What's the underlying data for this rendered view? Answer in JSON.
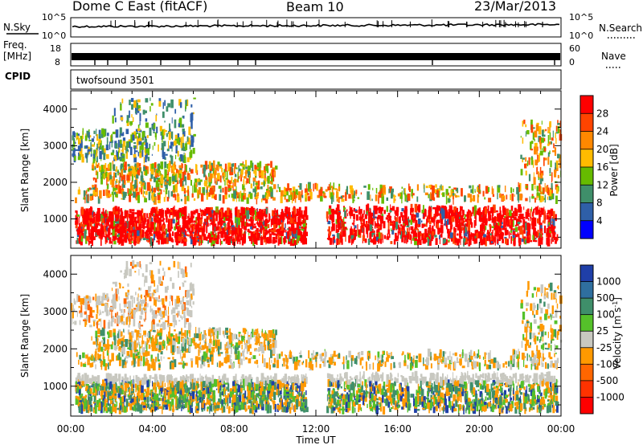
{
  "header": {
    "station": "Dome C East (fitACF)",
    "beam": "Beam 10",
    "date": "23/Mar/2013"
  },
  "strips": {
    "nsky_label": "N.Sky",
    "nsky_ticks": [
      "10^5",
      "10^0"
    ],
    "nsearch_label": "N.Search",
    "nsearch_ticks": [
      "10^5",
      "10^0"
    ],
    "freq_label_line1": "Freq.",
    "freq_label_line2": "[MHz]",
    "freq_ticks": [
      "18",
      "8"
    ],
    "nave_label": "Nave",
    "nave_ticks": [
      "60",
      "0"
    ],
    "cpid_label": "CPID",
    "cpid_value": "twofsound 3501"
  },
  "chart_data": [
    {
      "type": "heatmap",
      "panel": "power",
      "ylabel": "Slant Range [km]",
      "xlabel": "",
      "y_ticks": [
        1000,
        2000,
        3000,
        4000
      ],
      "ylim": [
        200,
        4500
      ],
      "x_ticks": [
        "00:00",
        "04:00",
        "08:00",
        "12:00",
        "16:00",
        "20:00",
        "00:00"
      ],
      "xlim_hours": [
        0,
        24
      ],
      "colorbar": {
        "label": "Power [dB]",
        "ticks": [
          "28",
          "24",
          "20",
          "16",
          "12",
          "8",
          "4"
        ],
        "colors": [
          "#ff0000",
          "#ff4400",
          "#ff8800",
          "#ffbb00",
          "#66bb00",
          "#3f8f6a",
          "#2f5fa8",
          "#0000ff"
        ]
      }
    },
    {
      "type": "heatmap",
      "panel": "velocity",
      "ylabel": "Slant Range [km]",
      "xlabel": "Time UT",
      "y_ticks": [
        1000,
        2000,
        3000,
        4000
      ],
      "ylim": [
        200,
        4500
      ],
      "x_ticks": [
        "00:00",
        "04:00",
        "08:00",
        "12:00",
        "16:00",
        "20:00",
        "00:00"
      ],
      "xlim_hours": [
        0,
        24
      ],
      "colorbar": {
        "label": "Velocity [m s-1]",
        "ticks": [
          "1000",
          "500",
          "100",
          "25",
          "-25",
          "-100",
          "-500",
          "-1000"
        ],
        "colors": [
          "#1f3fa8",
          "#2f6f9f",
          "#3f8f6a",
          "#55c12a",
          "#c8c8c0",
          "#ff9900",
          "#ff6600",
          "#ff3300",
          "#ff0000"
        ]
      }
    }
  ]
}
